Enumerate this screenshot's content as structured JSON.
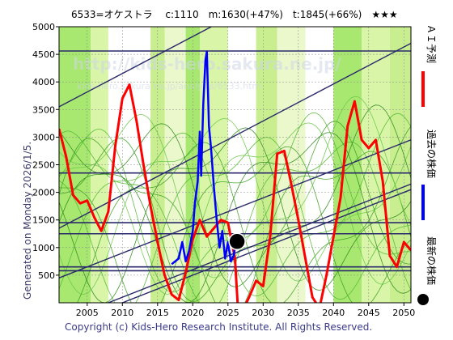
{
  "chart_data": {
    "type": "line",
    "title": "6533=オケストラ　 c:1110　m:1630(+47%)　t:1845(+66%)　★★★",
    "xlabel": "",
    "ylabel": "",
    "xlim": [
      2001,
      2051
    ],
    "ylim": [
      0,
      5000
    ],
    "x_ticks": [
      2005,
      2010,
      2015,
      2020,
      2025,
      2030,
      2035,
      2040,
      2045,
      2050
    ],
    "y_ticks": [
      500,
      1000,
      1500,
      2000,
      2500,
      3000,
      3500,
      4000,
      4500,
      5000
    ],
    "grid": true,
    "legend": [
      {
        "name": "ＡＩ予測",
        "color": "#ff0000",
        "marker": "line"
      },
      {
        "name": "過去の株価",
        "color": "#0000ff",
        "marker": "line"
      },
      {
        "name": "最新の株価",
        "color": "#000000",
        "marker": "dot"
      }
    ],
    "ai_forecast": {
      "color": "#ff0000",
      "points": [
        [
          2001,
          3150
        ],
        [
          2002,
          2650
        ],
        [
          2003,
          1950
        ],
        [
          2004,
          1800
        ],
        [
          2005,
          1850
        ],
        [
          2006,
          1550
        ],
        [
          2007,
          1300
        ],
        [
          2008,
          1650
        ],
        [
          2009,
          2850
        ],
        [
          2010,
          3700
        ],
        [
          2011,
          3950
        ],
        [
          2012,
          3300
        ],
        [
          2013,
          2500
        ],
        [
          2014,
          1750
        ],
        [
          2015,
          1100
        ],
        [
          2016,
          500
        ],
        [
          2017,
          150
        ],
        [
          2018,
          50
        ],
        [
          2019,
          550
        ],
        [
          2020,
          1150
        ],
        [
          2021,
          1500
        ],
        [
          2022,
          1200
        ],
        [
          2023,
          1350
        ],
        [
          2024,
          1500
        ],
        [
          2025,
          1450
        ],
        [
          2026,
          800
        ],
        [
          2026.5,
          -300
        ],
        [
          2028,
          100
        ],
        [
          2029,
          400
        ],
        [
          2030,
          300
        ],
        [
          2031,
          1200
        ],
        [
          2032,
          2700
        ],
        [
          2033,
          2750
        ],
        [
          2034,
          2150
        ],
        [
          2035,
          1500
        ],
        [
          2036,
          800
        ],
        [
          2037,
          100
        ],
        [
          2038,
          -100
        ],
        [
          2039,
          500
        ],
        [
          2040,
          1200
        ],
        [
          2041,
          1900
        ],
        [
          2042,
          3200
        ],
        [
          2043,
          3650
        ],
        [
          2044,
          2950
        ],
        [
          2045,
          2800
        ],
        [
          2046,
          2950
        ],
        [
          2047,
          2200
        ],
        [
          2048,
          850
        ],
        [
          2049,
          650
        ],
        [
          2050,
          1100
        ],
        [
          2051,
          950
        ]
      ]
    },
    "past_price": {
      "color": "#0000ff",
      "points": [
        [
          2017,
          700
        ],
        [
          2018,
          800
        ],
        [
          2018.5,
          1100
        ],
        [
          2019,
          750
        ],
        [
          2019.5,
          950
        ],
        [
          2020,
          1300
        ],
        [
          2020.3,
          1800
        ],
        [
          2020.7,
          2200
        ],
        [
          2021,
          3100
        ],
        [
          2021.2,
          2300
        ],
        [
          2021.5,
          3600
        ],
        [
          2021.8,
          4400
        ],
        [
          2022,
          4550
        ],
        [
          2022.3,
          3200
        ],
        [
          2022.6,
          2800
        ],
        [
          2023,
          2100
        ],
        [
          2023.4,
          1500
        ],
        [
          2023.8,
          1000
        ],
        [
          2024.2,
          1300
        ],
        [
          2024.6,
          800
        ],
        [
          2025,
          1100
        ],
        [
          2025.4,
          750
        ],
        [
          2025.8,
          850
        ],
        [
          2026,
          1000
        ]
      ]
    },
    "latest_price": {
      "x": 2026.3,
      "y": 1110
    },
    "bands": [
      {
        "from": 2001,
        "to": 2005.5,
        "color": "#a8e870"
      },
      {
        "from": 2005.5,
        "to": 2008,
        "color": "#d8f5a8"
      },
      {
        "from": 2008,
        "to": 2014,
        "color": "#ffffff"
      },
      {
        "from": 2014,
        "to": 2016,
        "color": "#c8ee90"
      },
      {
        "from": 2016,
        "to": 2019,
        "color": "#eaf8cc"
      },
      {
        "from": 2019,
        "to": 2021,
        "color": "#a8e870"
      },
      {
        "from": 2021,
        "to": 2025,
        "color": "#d8f5a8"
      },
      {
        "from": 2025,
        "to": 2029,
        "color": "#ffffff"
      },
      {
        "from": 2029,
        "to": 2032,
        "color": "#c8ee90"
      },
      {
        "from": 2032,
        "to": 2036,
        "color": "#eaf8cc"
      },
      {
        "from": 2036,
        "to": 2040,
        "color": "#ffffff"
      },
      {
        "from": 2040,
        "to": 2044,
        "color": "#a8e870"
      },
      {
        "from": 2044,
        "to": 2048,
        "color": "#d8f5a8"
      },
      {
        "from": 2048,
        "to": 2051,
        "color": "#c8ee90"
      }
    ],
    "horizontal_lines": [
      4560,
      2350,
      1450,
      1250,
      650,
      580
    ],
    "trend_lines": [
      {
        "x1": 2001,
        "y1": 3550,
        "x2": 2051,
        "y2": 6900
      },
      {
        "x1": 2001,
        "y1": 1350,
        "x2": 2051,
        "y2": 4700
      },
      {
        "x1": 2001,
        "y1": 450,
        "x2": 2051,
        "y2": 2950
      },
      {
        "x1": 2001,
        "y1": -350,
        "x2": 2051,
        "y2": 2150
      },
      {
        "x1": 2001,
        "y1": -450,
        "x2": 2051,
        "y2": 2050
      }
    ]
  },
  "side_labels": {
    "ai_forecast": "ＡＩ予測",
    "past_price": "過去の株価",
    "latest_price": "最新の株価"
  },
  "generated_on": "Generated on Monday 2026/1/5.",
  "copyright": "Copyright (c) Kids-Hero Research Institute. All Rights Reserved.",
  "watermark": {
    "url": "http://kids-hero.sakura.ne.jp/",
    "path": "kids-hero.sakura.ne.jp/analysis/6533.htm"
  },
  "colors": {
    "ai": "#ff0000",
    "past": "#0000ff",
    "latest": "#000000",
    "grid": "#1a1a5a",
    "thin_green": "#3ca020",
    "navy": "#2a2a6a"
  }
}
